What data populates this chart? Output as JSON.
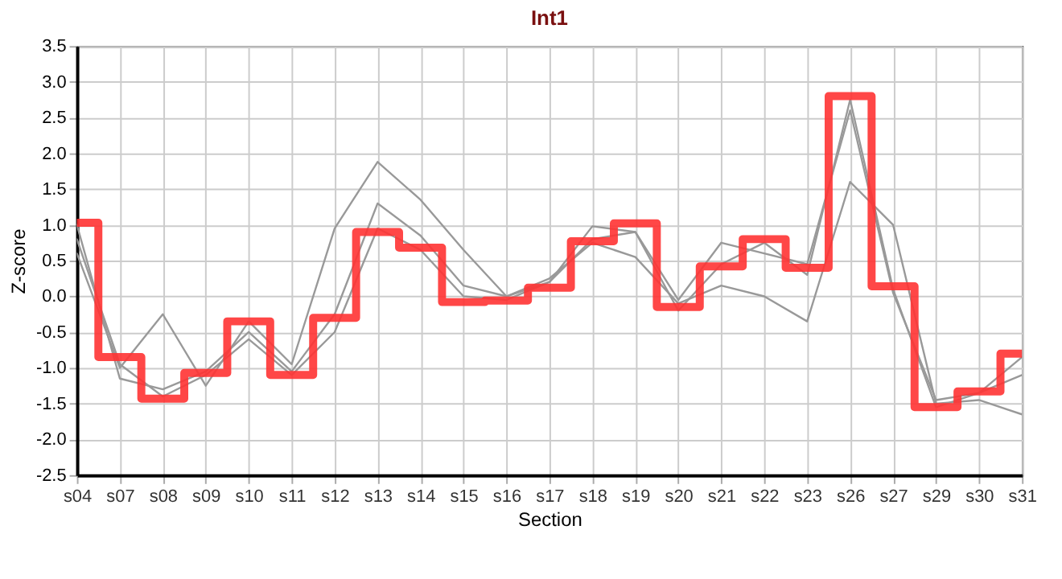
{
  "chart_data": {
    "type": "line",
    "title": "Int1",
    "xlabel": "Section",
    "ylabel": "Z-score",
    "categories": [
      "s04",
      "s07",
      "s08",
      "s09",
      "s10",
      "s11",
      "s12",
      "s13",
      "s14",
      "s15",
      "s16",
      "s17",
      "s18",
      "s19",
      "s20",
      "s21",
      "s22",
      "s23",
      "s26",
      "s27",
      "s29",
      "s30",
      "s31"
    ],
    "series": [
      {
        "type": "line",
        "color": "#999999",
        "values": [
          0.6,
          -1.0,
          -0.25,
          -1.25,
          -0.35,
          -0.95,
          0.95,
          1.88,
          1.35,
          0.65,
          0.0,
          0.2,
          0.98,
          0.9,
          -0.05,
          0.75,
          0.6,
          0.45,
          2.6,
          0.05,
          -1.45,
          -1.35,
          -1.1
        ]
      },
      {
        "type": "line",
        "color": "#999999",
        "values": [
          1.0,
          -1.15,
          -1.3,
          -1.05,
          -0.5,
          -1.05,
          -0.25,
          1.3,
          0.85,
          0.15,
          0.0,
          0.25,
          0.75,
          0.55,
          -0.1,
          0.15,
          0.0,
          -0.35,
          1.6,
          1.0,
          -1.5,
          -1.45,
          -1.65
        ]
      },
      {
        "type": "line",
        "color": "#999999",
        "values": [
          0.8,
          -0.95,
          -1.4,
          -1.1,
          -0.6,
          -1.1,
          -0.5,
          0.95,
          0.65,
          0.0,
          -0.05,
          0.2,
          0.8,
          0.9,
          -0.2,
          0.45,
          0.75,
          0.3,
          2.75,
          0.1,
          -1.55,
          -1.35,
          -0.85
        ]
      },
      {
        "type": "step",
        "color": "#ff3333",
        "values": [
          1.03,
          -0.85,
          -1.43,
          -1.07,
          -0.35,
          -1.1,
          -0.3,
          0.9,
          0.68,
          -0.08,
          -0.06,
          0.12,
          0.77,
          1.02,
          -0.15,
          0.42,
          0.8,
          0.4,
          2.8,
          0.14,
          -1.55,
          -1.33,
          -0.8
        ]
      }
    ],
    "ylim": [
      -2.5,
      3.5
    ],
    "yticks": [
      {
        "value": -2.5,
        "label": "-2.5"
      },
      {
        "value": -2,
        "label": "-2.0"
      },
      {
        "value": -1.5,
        "label": "-1.5"
      },
      {
        "value": -1,
        "label": "-1.0"
      },
      {
        "value": -0.5,
        "label": "-0.5"
      },
      {
        "value": 0,
        "label": "0.0"
      },
      {
        "value": 0.5,
        "label": "0.5"
      },
      {
        "value": 1,
        "label": "1.0"
      },
      {
        "value": 1.5,
        "label": "1.5"
      },
      {
        "value": 2,
        "label": "2.0"
      },
      {
        "value": 2.5,
        "label": "2.5"
      },
      {
        "value": 3,
        "label": "3.0"
      },
      {
        "value": 3.5,
        "label": "3.5"
      }
    ],
    "grid": true,
    "marker": "none"
  }
}
